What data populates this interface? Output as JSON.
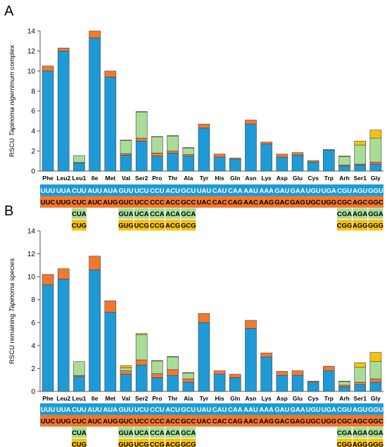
{
  "colors": {
    "blue": "#1e9ad6",
    "orange": "#f2782e",
    "green": "#a9dd97",
    "yellow": "#f7c20f",
    "codon_text_light": "#ffffff",
    "codon_text_dark": "#000000"
  },
  "chart_data": [
    {
      "type": "bar",
      "panel": "A",
      "stacked": true,
      "ylabel_pre": "RSCU ",
      "ylabel_italic": "Tapinoma nigerrimum",
      "ylabel_post": " complex",
      "ylim": [
        0,
        14
      ],
      "yticks": [
        0,
        2,
        4,
        6,
        8,
        10,
        12,
        14
      ],
      "grid": false,
      "categories": [
        "Phe",
        "Leu2",
        "Leu1",
        "Ile",
        "Met",
        "Val",
        "Ser2",
        "Pro",
        "Thr",
        "Ala",
        "Tyr",
        "His",
        "Gln",
        "Asn",
        "Lys",
        "Asp",
        "Glu",
        "Cys",
        "Trp",
        "Arh",
        "Ser1",
        "Gly"
      ],
      "series": [
        {
          "color": "blue",
          "values": [
            10.0,
            12.0,
            0.8,
            13.3,
            9.4,
            1.6,
            3.0,
            1.5,
            1.8,
            1.5,
            4.3,
            1.4,
            1.2,
            4.7,
            2.7,
            1.4,
            1.6,
            0.9,
            2.1,
            0.5,
            0.6,
            0.7
          ]
        },
        {
          "color": "orange",
          "values": [
            0.5,
            0.3,
            0.05,
            0.7,
            0.6,
            0.15,
            0.3,
            0.3,
            0.2,
            0.15,
            0.4,
            0.3,
            0.1,
            0.4,
            0.2,
            0.3,
            0.25,
            0.15,
            0.05,
            0.1,
            0.1,
            0.2
          ]
        },
        {
          "color": "green",
          "values": [
            0,
            0,
            0.7,
            0,
            0,
            1.3,
            2.6,
            1.6,
            1.5,
            0.65,
            0,
            0,
            0,
            0,
            0,
            0,
            0,
            0,
            0,
            0.85,
            1.9,
            2.4
          ]
        },
        {
          "color": "yellow",
          "values": [
            0,
            0,
            0,
            0,
            0,
            0.05,
            0.05,
            0.05,
            0.05,
            0.05,
            0,
            0,
            0,
            0,
            0,
            0,
            0,
            0,
            0,
            0.05,
            0.4,
            0.8
          ]
        }
      ],
      "codon_rows": [
        {
          "fill": "blue",
          "text": "light",
          "cells": [
            "UUU",
            "UUA",
            "CUU",
            "AUU",
            "AUA",
            "GUU",
            "UCU",
            "CCU",
            "ACU",
            "GCU",
            "UAU",
            "CAU",
            "CAA",
            "AAU",
            "AAA",
            "GAU",
            "GAA",
            "UGU",
            "UGA",
            "CGU",
            "AGU",
            "GGU"
          ]
        },
        {
          "fill": "orange",
          "text": "dark",
          "cells": [
            "UUC",
            "UUG",
            "CUC",
            "AUC",
            "AUG",
            "GUC",
            "UCC",
            "CCC",
            "ACC",
            "GCC",
            "UAC",
            "CAC",
            "CAG",
            "AAC",
            "AAG",
            "GAC",
            "GAG",
            "UGC",
            "UGG",
            "CGC",
            "AGC",
            "GGC"
          ]
        },
        {
          "fill": "green",
          "text": "dark",
          "cells": [
            "",
            "",
            "CUA",
            "",
            "",
            "GUA",
            "UCA",
            "CCA",
            "ACA",
            "GCA",
            "",
            "",
            "",
            "",
            "",
            "",
            "",
            "",
            "",
            "CGA",
            "AGA",
            "GGA"
          ]
        },
        {
          "fill": "yellow",
          "text": "dark",
          "cells": [
            "",
            "",
            "CUG",
            "",
            "",
            "GUG",
            "UCG",
            "CCG",
            "ACG",
            "GCG",
            "",
            "",
            "",
            "",
            "",
            "",
            "",
            "",
            "",
            "CGG",
            "AGG",
            "GGG"
          ]
        }
      ]
    },
    {
      "type": "bar",
      "panel": "B",
      "stacked": true,
      "ylabel_pre": "RSCU remaining ",
      "ylabel_italic": "Tapinoma",
      "ylabel_post": " species",
      "ylim": [
        0,
        14
      ],
      "yticks": [
        0,
        2,
        4,
        6,
        8,
        10,
        12,
        14
      ],
      "grid": false,
      "categories": [
        "Phe",
        "Leu2",
        "Leu1",
        "Ile",
        "Met",
        "Val",
        "Ser2",
        "Pro",
        "Thr",
        "Ala",
        "Tyr",
        "His",
        "Gln",
        "Asn",
        "Lys",
        "Asp",
        "Glu",
        "Cys",
        "Trp",
        "Arh",
        "Ser1",
        "Gly"
      ],
      "series": [
        {
          "color": "blue",
          "values": [
            9.3,
            9.8,
            1.3,
            10.6,
            6.9,
            1.5,
            2.3,
            1.2,
            1.4,
            0.8,
            6.0,
            1.5,
            1.2,
            5.5,
            3.0,
            1.4,
            1.4,
            0.8,
            1.8,
            0.4,
            0.6,
            0.8
          ]
        },
        {
          "color": "orange",
          "values": [
            0.9,
            0.9,
            0.1,
            1.2,
            1.0,
            0.3,
            0.45,
            0.35,
            0.5,
            0.3,
            0.8,
            0.3,
            0.3,
            0.7,
            0.35,
            0.35,
            0.4,
            0.1,
            0.4,
            0.15,
            0.2,
            0.3
          ]
        },
        {
          "color": "green",
          "values": [
            0,
            0,
            1.2,
            0,
            0,
            0.25,
            2.2,
            1.1,
            1.1,
            0.5,
            0,
            0,
            0,
            0,
            0,
            0,
            0,
            0,
            0,
            0.3,
            1.3,
            1.5
          ]
        },
        {
          "color": "yellow",
          "values": [
            0,
            0,
            0,
            0,
            0,
            0.2,
            0.1,
            0.05,
            0.05,
            0.05,
            0,
            0,
            0,
            0,
            0,
            0,
            0,
            0,
            0,
            0.05,
            0.4,
            0.8
          ]
        }
      ],
      "codon_rows": [
        {
          "fill": "blue",
          "text": "light",
          "cells": [
            "UUU",
            "UUA",
            "CUU",
            "AUU",
            "AUA",
            "GUU",
            "UCU",
            "CCU",
            "ACU",
            "GCU",
            "UAU",
            "CAU",
            "CAA",
            "AAU",
            "AAA",
            "GAU",
            "GAA",
            "UGU",
            "UGA",
            "CGU",
            "AGU",
            "GGU"
          ]
        },
        {
          "fill": "orange",
          "text": "dark",
          "cells": [
            "UUC",
            "UUG",
            "CUC",
            "AUC",
            "AUG",
            "GUC",
            "UCC",
            "CCC",
            "ACC",
            "GCC",
            "UAC",
            "CAC",
            "CAG",
            "AAC",
            "AAG",
            "GAC",
            "GAG",
            "UGC",
            "UGG",
            "CGC",
            "AGC",
            "GGC"
          ]
        },
        {
          "fill": "green",
          "text": "dark",
          "cells": [
            "",
            "",
            "CUA",
            "",
            "",
            "GUA",
            "UCA",
            "CCA",
            "ACA",
            "GCA",
            "",
            "",
            "",
            "",
            "",
            "",
            "",
            "",
            "",
            "CGA",
            "AGA",
            "GGA"
          ]
        },
        {
          "fill": "yellow",
          "text": "dark",
          "cells": [
            "",
            "",
            "CUG",
            "",
            "",
            "GUG",
            "UCG",
            "CCG",
            "ACG",
            "GCG",
            "",
            "",
            "",
            "",
            "",
            "",
            "",
            "",
            "",
            "CGG",
            "AGG",
            "GGG"
          ]
        }
      ]
    }
  ]
}
